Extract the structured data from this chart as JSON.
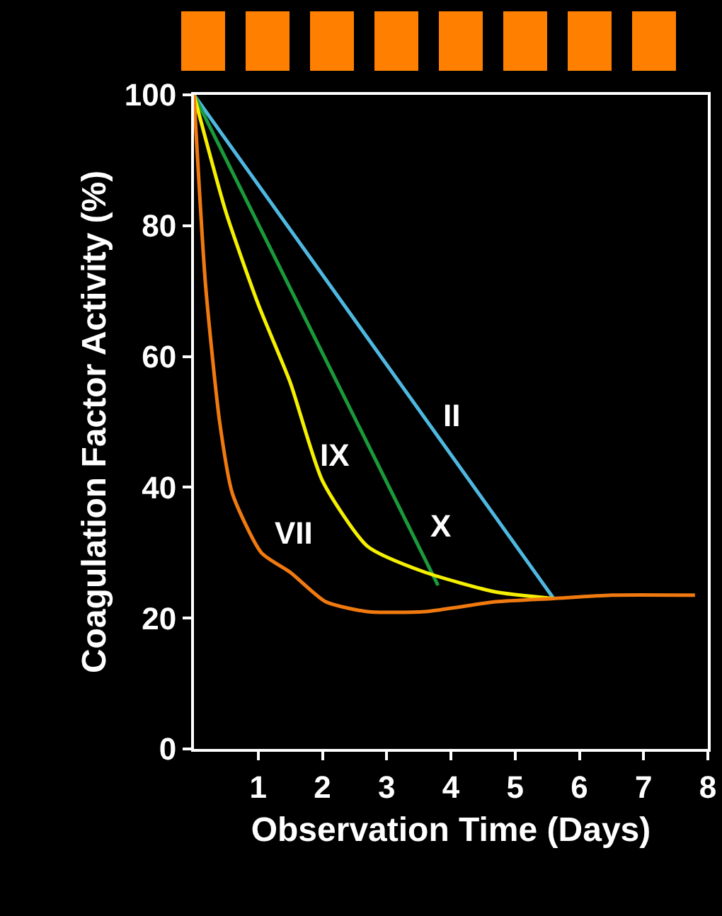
{
  "chart_data": {
    "type": "line",
    "xlabel": "Observation Time (Days)",
    "ylabel": "Coagulation Factor Activity (%)",
    "xlim": [
      0,
      8
    ],
    "xticks": [
      1,
      2,
      3,
      4,
      5,
      6,
      7,
      8
    ],
    "ylim": [
      0,
      100
    ],
    "yticks": [
      0,
      20,
      40,
      60,
      80,
      100
    ],
    "grid": false,
    "marker": "none",
    "line_style": "solid",
    "series": [
      {
        "name": "II",
        "color": "#4fb8e0",
        "x": [
          0,
          5.6
        ],
        "values": [
          100,
          23
        ]
      },
      {
        "name": "X",
        "color": "#1a9a3a",
        "x": [
          0,
          3.8
        ],
        "values": [
          100,
          25
        ]
      },
      {
        "name": "IX",
        "color": "#f5f000",
        "x": [
          0,
          0.5,
          1.0,
          1.5,
          2.0,
          2.7,
          3.6,
          4.7,
          5.6
        ],
        "values": [
          100,
          82,
          68,
          56,
          41,
          31,
          27,
          24,
          23
        ]
      },
      {
        "name": "VII",
        "color": "#f07a10",
        "x": [
          0,
          0.18,
          0.4,
          0.6,
          1.05,
          1.5,
          2.05,
          2.7,
          3.6,
          4.7,
          5.6,
          6.5,
          7.8
        ],
        "values": [
          100,
          71,
          50,
          39,
          30,
          27,
          22.5,
          21,
          21,
          22.5,
          23,
          23.5,
          23.5
        ]
      }
    ]
  }
}
